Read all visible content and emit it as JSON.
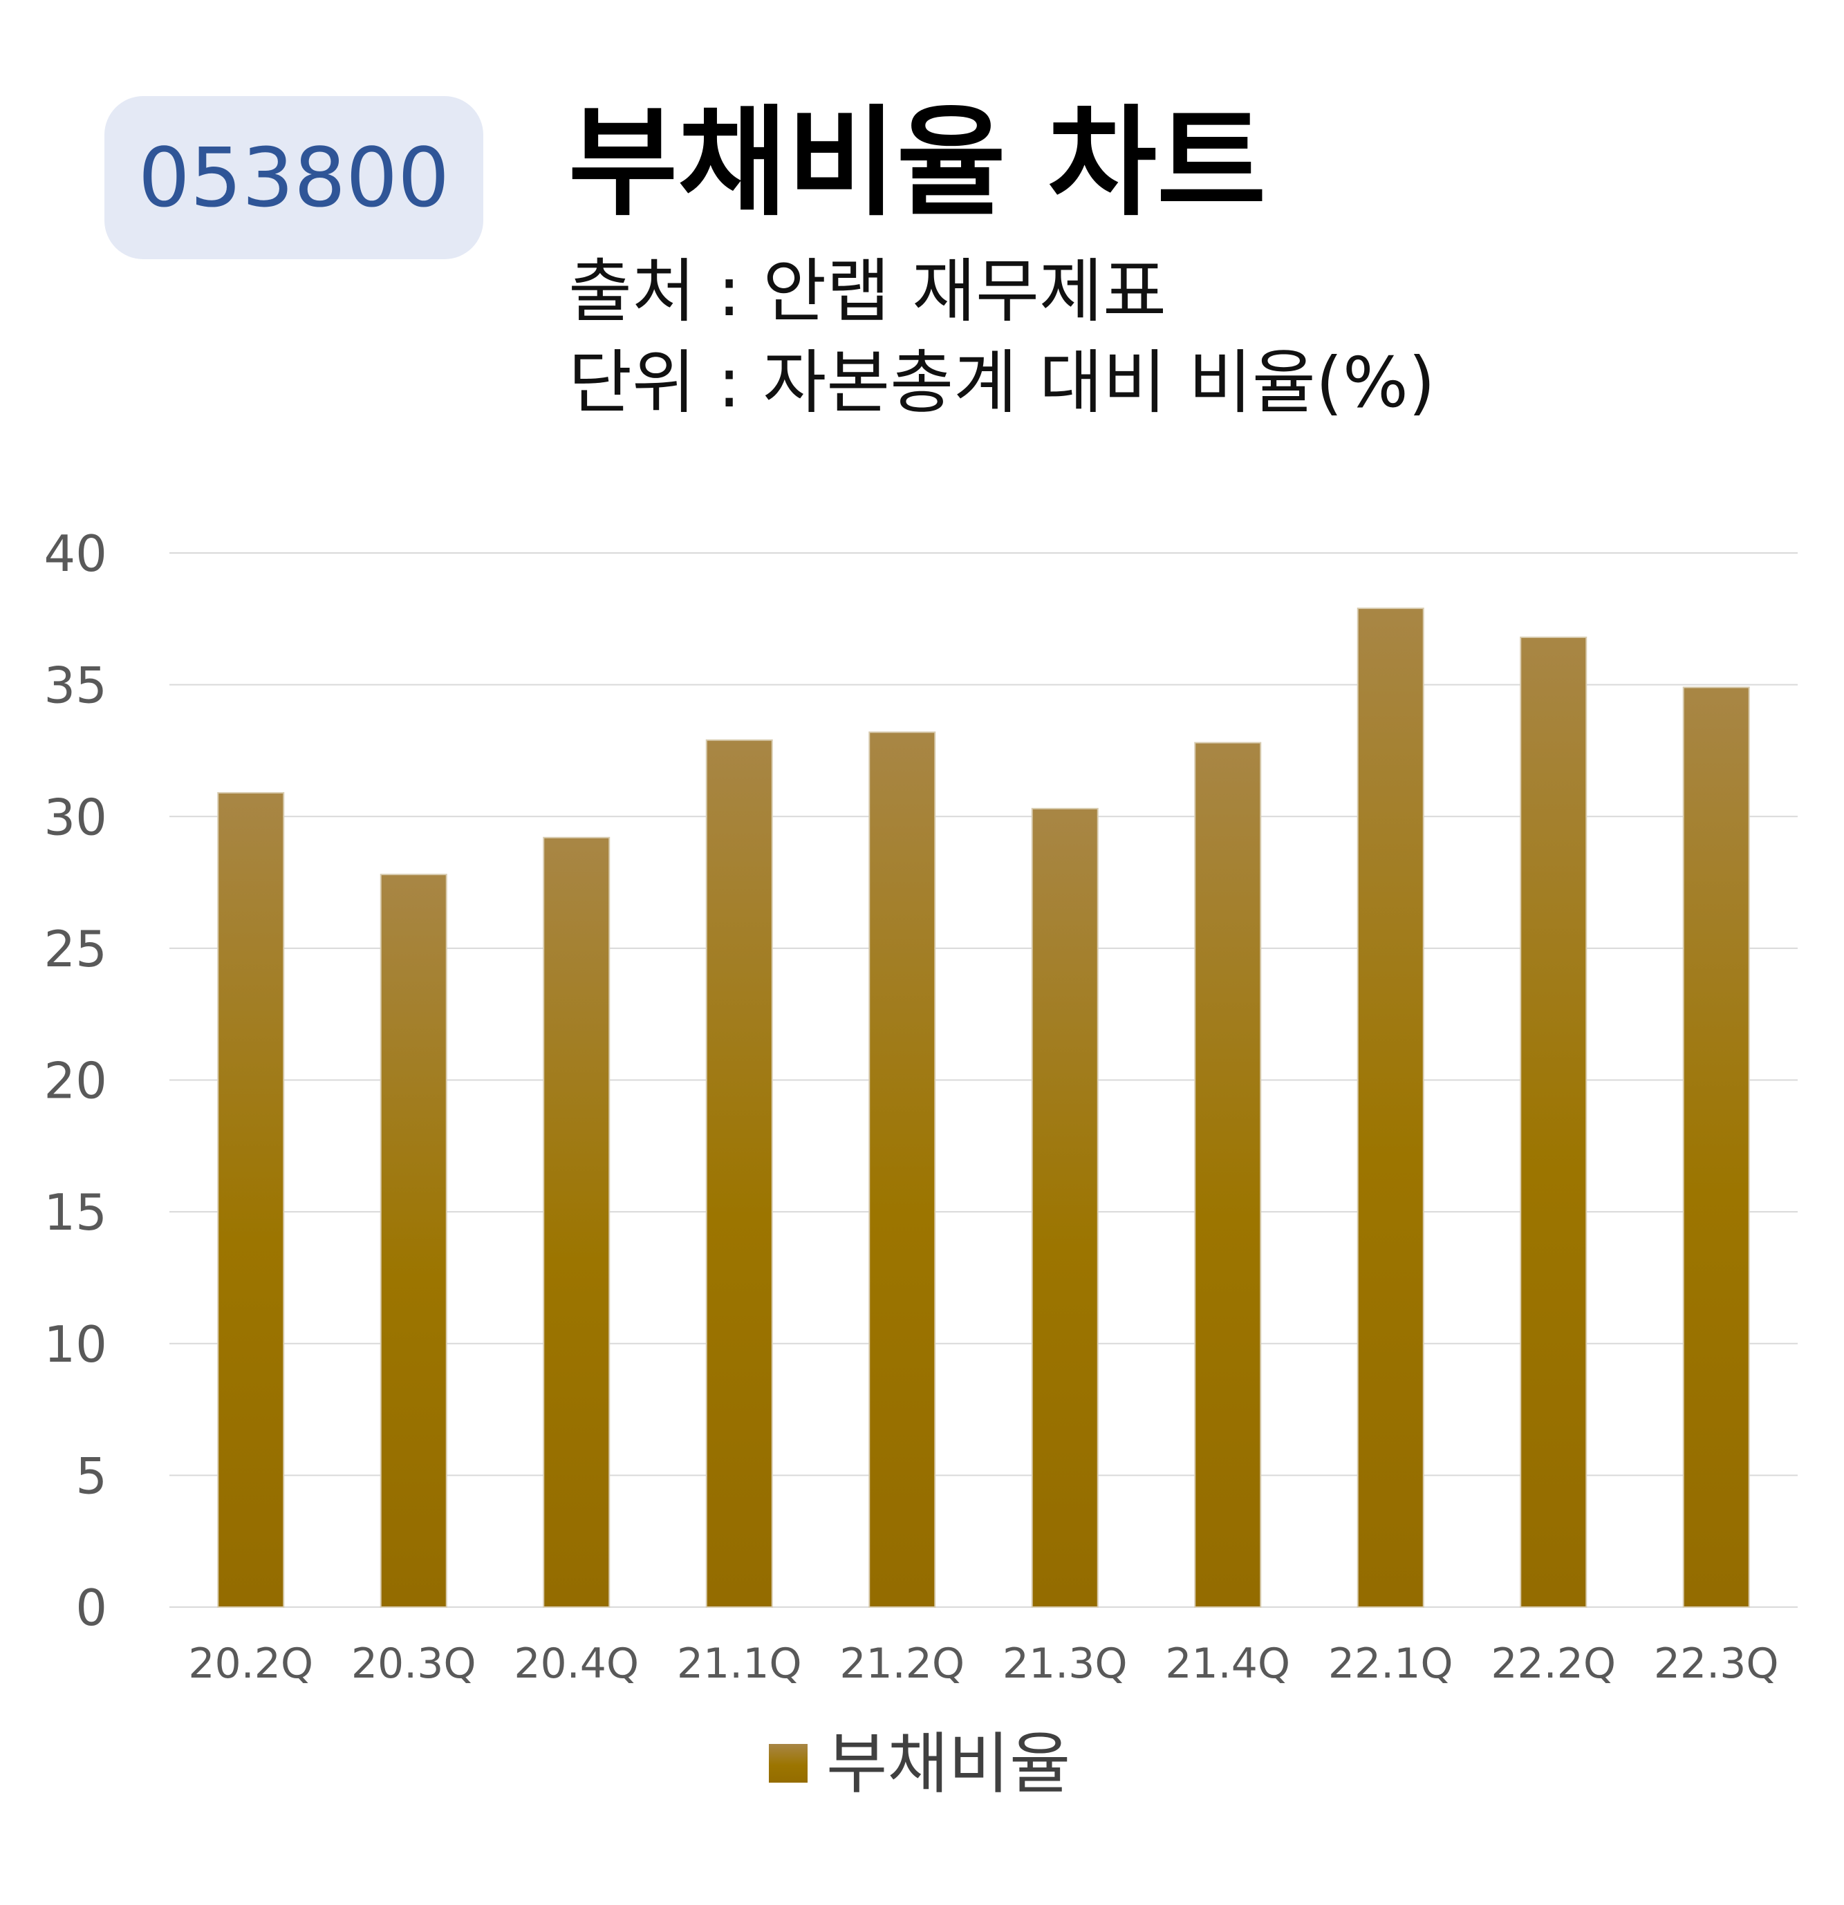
{
  "header": {
    "ticker": "053800",
    "title": "부채비율 차트",
    "source": "출처 : 안랩 재무제표",
    "unit": "단위 : 자본총계 대비 비율(%)"
  },
  "colors": {
    "bar_top": "#a88645",
    "bar_bottom": "#946c00",
    "grid": "#d9d9d9",
    "badge_bg": "#e4e9f5",
    "badge_text": "#2f5597"
  },
  "chart_data": {
    "type": "bar",
    "categories": [
      "20.2Q",
      "20.3Q",
      "20.4Q",
      "21.1Q",
      "21.2Q",
      "21.3Q",
      "21.4Q",
      "22.1Q",
      "22.2Q",
      "22.3Q"
    ],
    "series": [
      {
        "name": "부채비율",
        "values": [
          30.9,
          27.8,
          29.2,
          32.9,
          33.2,
          30.3,
          32.8,
          37.9,
          36.8,
          34.9
        ]
      }
    ],
    "ylim": [
      0,
      40
    ],
    "yticks": [
      "0",
      "5",
      "10",
      "15",
      "20",
      "25",
      "30",
      "35",
      "40"
    ],
    "grid": true,
    "legend": "bottom"
  }
}
